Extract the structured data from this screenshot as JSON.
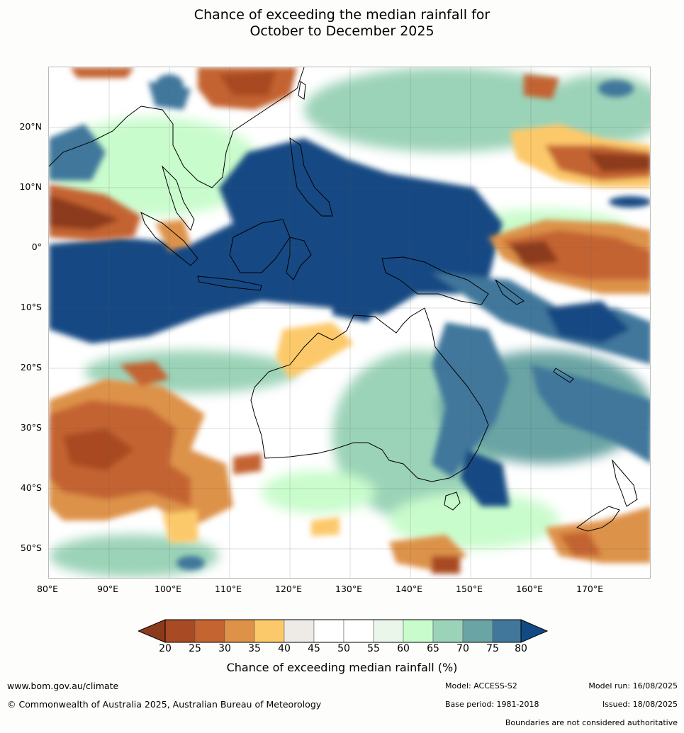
{
  "title_line1": "Chance of exceeding the median rainfall for",
  "title_line2": "October to December 2025",
  "lat_labels": [
    "20°N",
    "10°N",
    "0°",
    "10°S",
    "20°S",
    "30°S",
    "40°S",
    "50°S"
  ],
  "lon_labels": [
    "80°E",
    "90°E",
    "100°E",
    "110°E",
    "120°E",
    "130°E",
    "140°E",
    "150°E",
    "160°E",
    "170°E"
  ],
  "colorbar": {
    "ticks": [
      "20",
      "25",
      "30",
      "35",
      "40",
      "45",
      "50",
      "55",
      "60",
      "65",
      "70",
      "75",
      "80"
    ],
    "colors": [
      "#8c3a1c",
      "#a84a24",
      "#c46430",
      "#dd9248",
      "#fcc96a",
      "#eeebe6",
      "#ffffff",
      "#ffffff",
      "#e9f6e9",
      "#c9fccc",
      "#9bd3b8",
      "#6ba4a4",
      "#40779b",
      "#124a83"
    ],
    "label": "Chance of exceeding median rainfall (%)"
  },
  "footer": {
    "website": "www.bom.gov.au/climate",
    "copyright": "© Commonwealth of Australia 2025, Australian Bureau of Meteorology",
    "model": "Model: ACCESS-S2",
    "base_period": "Base period: 1981-2018",
    "model_run": "Model run: 16/08/2025",
    "issued": "Issued: 18/08/2025",
    "disclaimer": "Boundaries are not considered authoritative"
  }
}
